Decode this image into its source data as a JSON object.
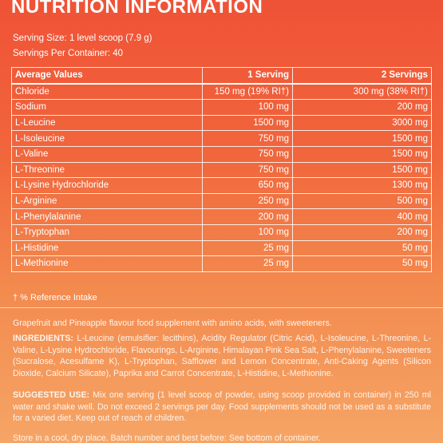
{
  "title": "NUTRITION INFORMATION",
  "serving_size": "Serving Size: 1 level scoop (7.9 g)",
  "servings_per_container": "Servings Per Container: 40",
  "table": {
    "header": [
      "Average Values",
      "1 Serving",
      "2 Servings"
    ],
    "rows": [
      [
        "Chloride",
        "150 mg (19% RI†)",
        "300 mg (38% RI†)"
      ],
      [
        "Sodium",
        "100 mg",
        "200 mg"
      ],
      [
        "L-Leucine",
        "1500 mg",
        "3000 mg"
      ],
      [
        "L-Isoleucine",
        "750 mg",
        "1500 mg"
      ],
      [
        "L-Valine",
        "750 mg",
        "1500 mg"
      ],
      [
        "L-Threonine",
        "750 mg",
        "1500 mg"
      ],
      [
        "L-Lysine Hydrochloride",
        "650 mg",
        "1300 mg"
      ],
      [
        "L-Arginine",
        "250 mg",
        "500 mg"
      ],
      [
        "L-Phenylalanine",
        "200 mg",
        "400 mg"
      ],
      [
        "L-Tryptophan",
        "100 mg",
        "200 mg"
      ],
      [
        "L-Histidine",
        "25 mg",
        "50 mg"
      ],
      [
        "L-Methionine",
        "25 mg",
        "50 mg"
      ]
    ]
  },
  "footnote": "† % Reference Intake",
  "description": "Grapefruit and Pineapple flavour food supplement with amino acids, with sweeteners.",
  "ingredients": {
    "label": "INGREDIENTS:",
    "text": "L-Leucine (emulsifier: lecithins), Acidity Regulator (Citric Acid), L-Isoleucine, L-Threonine, L-Valine, L-Lysine Hydrochloride, Flavourings, L-Arginine, Himalayan Pink Sea Salt, L-Phenylalanine, Sweeteners (Sucralose, Acesulfame K), L-Tryptophan, Safflower and Lemon Concentrate, Anti-Caking Agents (Silicon Dioxide, Calcium Silicate), Paprika and Carrot Concentrate, L-Histidine, L-Methionine."
  },
  "suggested_use": {
    "label": "SUGGESTED USE:",
    "text": "Mix one serving (1 level scoop of powder, using scoop provided in container) in 250 ml water and shake well. Do not exceed 2 servings per day. Food supplements should not be used as a substitute for a varied diet. Keep out of reach of children."
  },
  "storage": "Store in a cool, dry place. Batch number and best before: See bottom of container."
}
